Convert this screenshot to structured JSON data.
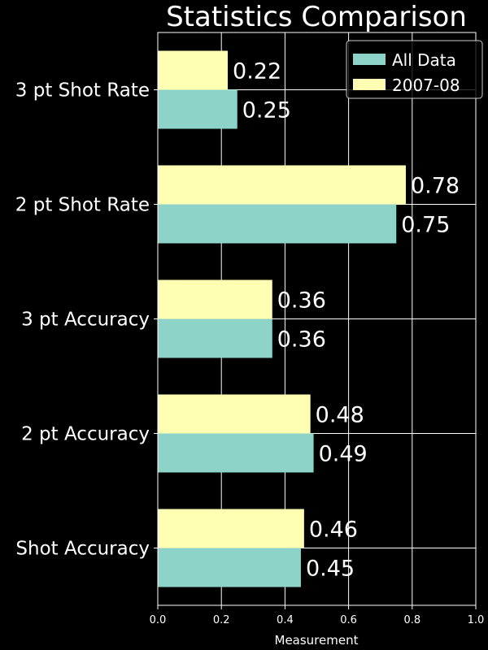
{
  "chart_data": {
    "type": "bar",
    "orientation": "horizontal",
    "title": "Statistics Comparison",
    "xlabel": "Measurement",
    "ylabel": "",
    "xlim": [
      0,
      1.0
    ],
    "x_ticks": [
      "0.0",
      "0.2",
      "0.4",
      "0.6",
      "0.8",
      "1.0"
    ],
    "grid": true,
    "legend_position": "top-right",
    "categories": [
      "Shot Accuracy",
      "2 pt Accuracy",
      "3 pt Accuracy",
      "2 pt Shot Rate",
      "3 pt Shot Rate"
    ],
    "series": [
      {
        "name": "All Data",
        "color": "#8dd3c7",
        "values": [
          0.45,
          0.49,
          0.36,
          0.75,
          0.25
        ],
        "labels": [
          "0.45",
          "0.49",
          "0.36",
          "0.75",
          "0.25"
        ]
      },
      {
        "name": "2007-08",
        "color": "#ffffb3",
        "values": [
          0.46,
          0.48,
          0.36,
          0.78,
          0.22
        ],
        "labels": [
          "0.46",
          "0.48",
          "0.36",
          "0.78",
          "0.22"
        ]
      }
    ],
    "colors": {
      "background": "#000000",
      "foreground": "#ffffff",
      "grid": "#ffffff"
    }
  }
}
